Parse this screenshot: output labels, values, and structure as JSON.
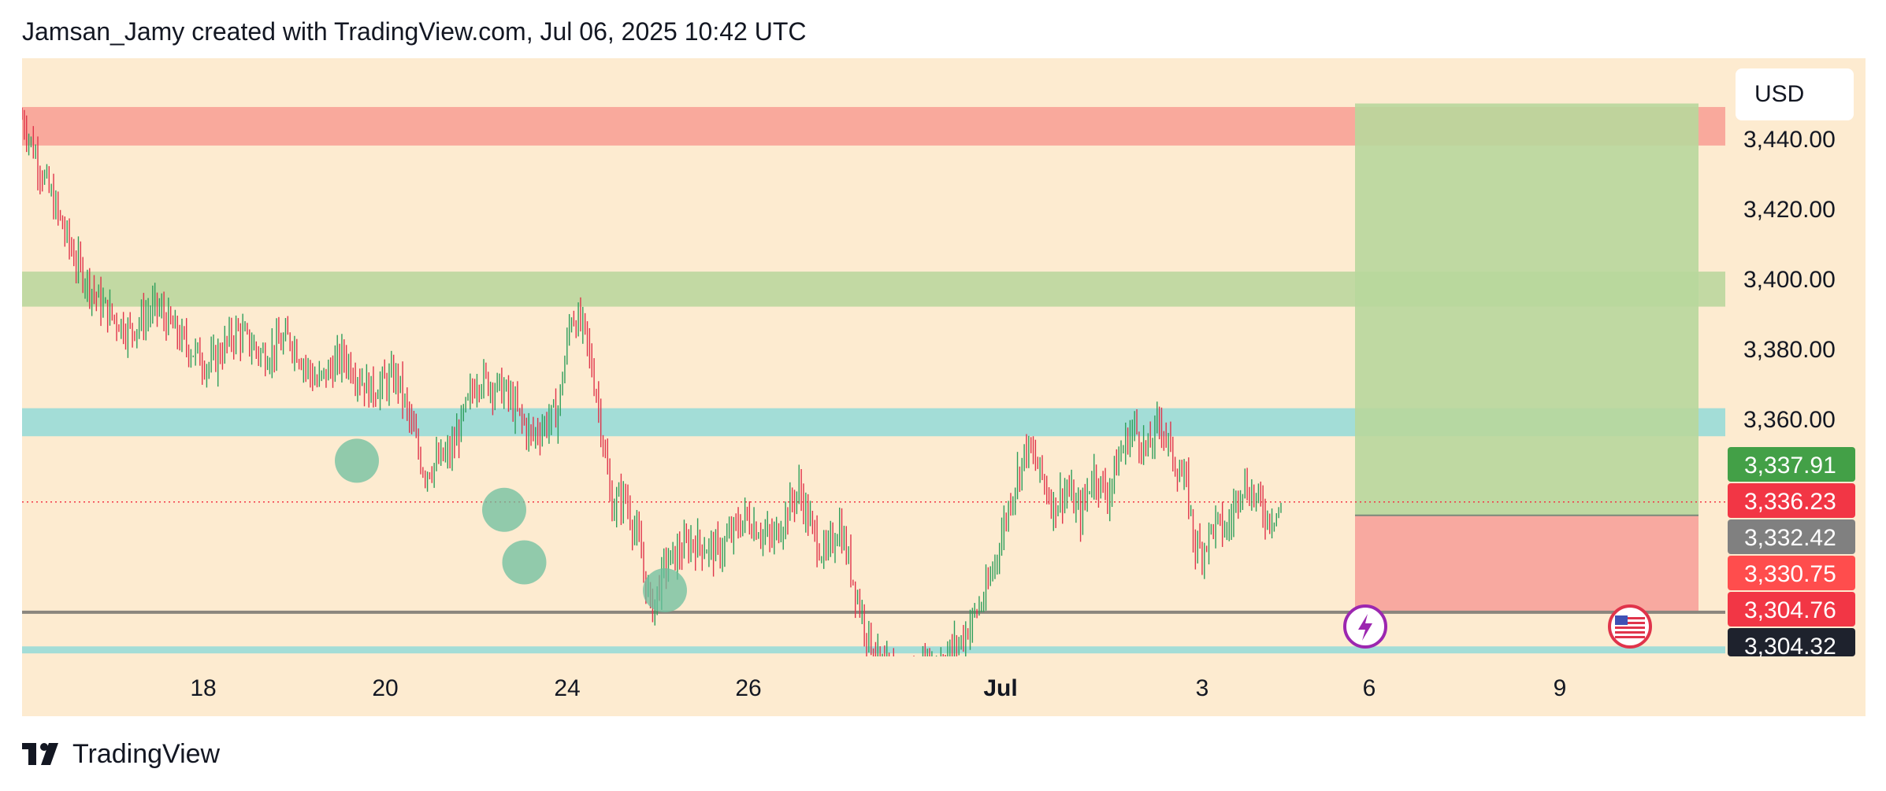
{
  "header": {
    "attribution": "Jamsan_Jamy created with TradingView.com, Jul 06, 2025 10:42 UTC"
  },
  "currency_label": "USD",
  "footer": {
    "brand": "TradingView"
  },
  "colors": {
    "background": "#fdebd0",
    "up": "#2e9e5b",
    "down": "#e0344b",
    "zone_red": "#f9a99c",
    "zone_green": "#c2d9a3",
    "zone_teal": "#a3ddd7",
    "target_zone": "#b8d79c",
    "stop_zone": "#f8a9a0",
    "circle": "#6cbf9f"
  },
  "chart_data": {
    "type": "candlestick",
    "symbol_currency": "USD",
    "y_ticks": [
      "3,440.00",
      "3,420.00",
      "3,400.00",
      "3,380.00",
      "3,360.00"
    ],
    "ylim": [
      3296,
      3452
    ],
    "x_ticks": [
      "18",
      "20",
      "24",
      "26",
      "Jul",
      "3",
      "6",
      "9"
    ],
    "price_labels": [
      {
        "value": "3,337.91",
        "color": "#43a047",
        "text_color": "#ffffff"
      },
      {
        "value": "3,336.23",
        "color": "#f23645",
        "text_color": "#ffffff"
      },
      {
        "value": "3,332.42",
        "color": "#808080",
        "text_color": "#ffffff"
      },
      {
        "value": "3,330.75",
        "color": "#ff4d4d",
        "text_color": "#ffffff"
      },
      {
        "value": "3,304.76",
        "color": "#f23645",
        "text_color": "#ffffff"
      },
      {
        "value": "3,304.32",
        "color": "#1e222d",
        "text_color": "#ffffff"
      }
    ],
    "zones": [
      {
        "name": "resistance-red",
        "low": 3438,
        "high": 3449
      },
      {
        "name": "resistance-green",
        "low": 3392,
        "high": 3402
      },
      {
        "name": "support-teal",
        "low": 3355,
        "high": 3363
      },
      {
        "name": "support-teal-low",
        "low": 3293,
        "high": 3295
      }
    ],
    "horizontal_lines": [
      {
        "name": "current-price-dotted",
        "value": 3336.23,
        "style": "dotted"
      },
      {
        "name": "support-line",
        "value": 3304.76,
        "style": "solid"
      }
    ],
    "position": {
      "side": "long",
      "entry": 3332.42,
      "target": 3450,
      "stop": 3304.76
    },
    "price_path": [
      [
        0,
        3446
      ],
      [
        0.02,
        3425
      ],
      [
        0.04,
        3405
      ],
      [
        0.06,
        3392
      ],
      [
        0.08,
        3385
      ],
      [
        0.1,
        3392
      ],
      [
        0.12,
        3382
      ],
      [
        0.14,
        3375
      ],
      [
        0.16,
        3385
      ],
      [
        0.18,
        3378
      ],
      [
        0.2,
        3383
      ],
      [
        0.22,
        3370
      ],
      [
        0.24,
        3378
      ],
      [
        0.26,
        3368
      ],
      [
        0.28,
        3372
      ],
      [
        0.3,
        3345
      ],
      [
        0.32,
        3350
      ],
      [
        0.34,
        3372
      ],
      [
        0.36,
        3368
      ],
      [
        0.38,
        3355
      ],
      [
        0.4,
        3362
      ],
      [
        0.41,
        3390
      ],
      [
        0.42,
        3385
      ],
      [
        0.43,
        3365
      ],
      [
        0.44,
        3335
      ],
      [
        0.45,
        3338
      ],
      [
        0.46,
        3325
      ],
      [
        0.47,
        3305
      ],
      [
        0.48,
        3318
      ],
      [
        0.5,
        3325
      ],
      [
        0.52,
        3322
      ],
      [
        0.54,
        3332
      ],
      [
        0.56,
        3325
      ],
      [
        0.58,
        3340
      ],
      [
        0.59,
        3328
      ],
      [
        0.6,
        3320
      ],
      [
        0.61,
        3330
      ],
      [
        0.62,
        3315
      ],
      [
        0.63,
        3300
      ],
      [
        0.64,
        3290
      ],
      [
        0.66,
        3285
      ],
      [
        0.68,
        3290
      ],
      [
        0.7,
        3296
      ],
      [
        0.72,
        3310
      ],
      [
        0.73,
        3325
      ],
      [
        0.74,
        3340
      ],
      [
        0.75,
        3352
      ],
      [
        0.76,
        3345
      ],
      [
        0.77,
        3335
      ],
      [
        0.78,
        3340
      ],
      [
        0.79,
        3332
      ],
      [
        0.8,
        3345
      ],
      [
        0.81,
        3338
      ],
      [
        0.82,
        3350
      ],
      [
        0.83,
        3358
      ],
      [
        0.84,
        3350
      ],
      [
        0.85,
        3360
      ],
      [
        0.86,
        3348
      ],
      [
        0.87,
        3340
      ],
      [
        0.875,
        3325
      ],
      [
        0.88,
        3322
      ],
      [
        0.89,
        3330
      ],
      [
        0.9,
        3328
      ],
      [
        0.91,
        3342
      ],
      [
        0.92,
        3338
      ],
      [
        0.93,
        3332
      ],
      [
        0.94,
        3334
      ]
    ],
    "highlight_circles": [
      {
        "x": 0.25,
        "y": 3348
      },
      {
        "x": 0.36,
        "y": 3334
      },
      {
        "x": 0.375,
        "y": 3319
      },
      {
        "x": 0.48,
        "y": 3311
      }
    ]
  }
}
